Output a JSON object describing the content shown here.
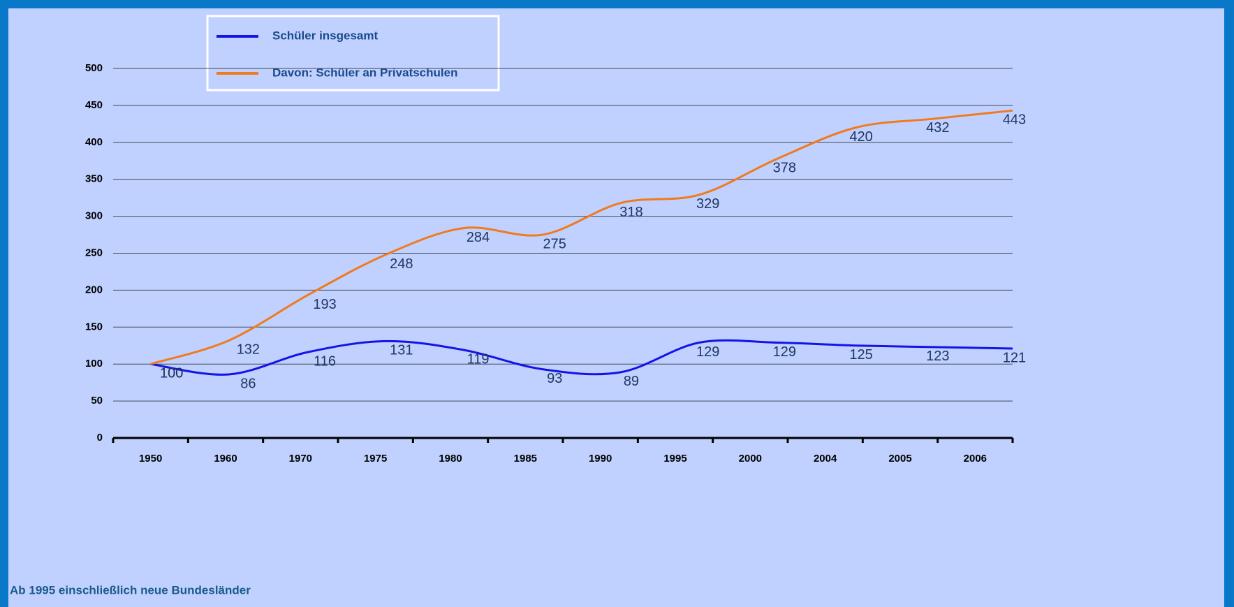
{
  "chart_data": {
    "type": "line",
    "categories": [
      "1950",
      "1960",
      "1970",
      "1975",
      "1980",
      "1985",
      "1990",
      "1995",
      "2000",
      "2004",
      "2005",
      "2006"
    ],
    "series": [
      {
        "name": "Schüler insgesamt",
        "color": "#1414e6",
        "values": [
          100,
          86,
          116,
          131,
          119,
          93,
          89,
          129,
          129,
          125,
          123,
          121
        ]
      },
      {
        "name": "Davon: Schüler an Privatschulen",
        "color": "#f07a1e",
        "values": [
          100,
          132,
          193,
          248,
          284,
          275,
          318,
          329,
          378,
          420,
          432,
          443
        ]
      }
    ],
    "ylim": [
      0,
      500
    ],
    "yticks": [
      0,
      50,
      100,
      150,
      200,
      250,
      300,
      350,
      400,
      450,
      500
    ],
    "grid": true,
    "note": "Ab 1995 einschließlich neue Bundesländer"
  }
}
